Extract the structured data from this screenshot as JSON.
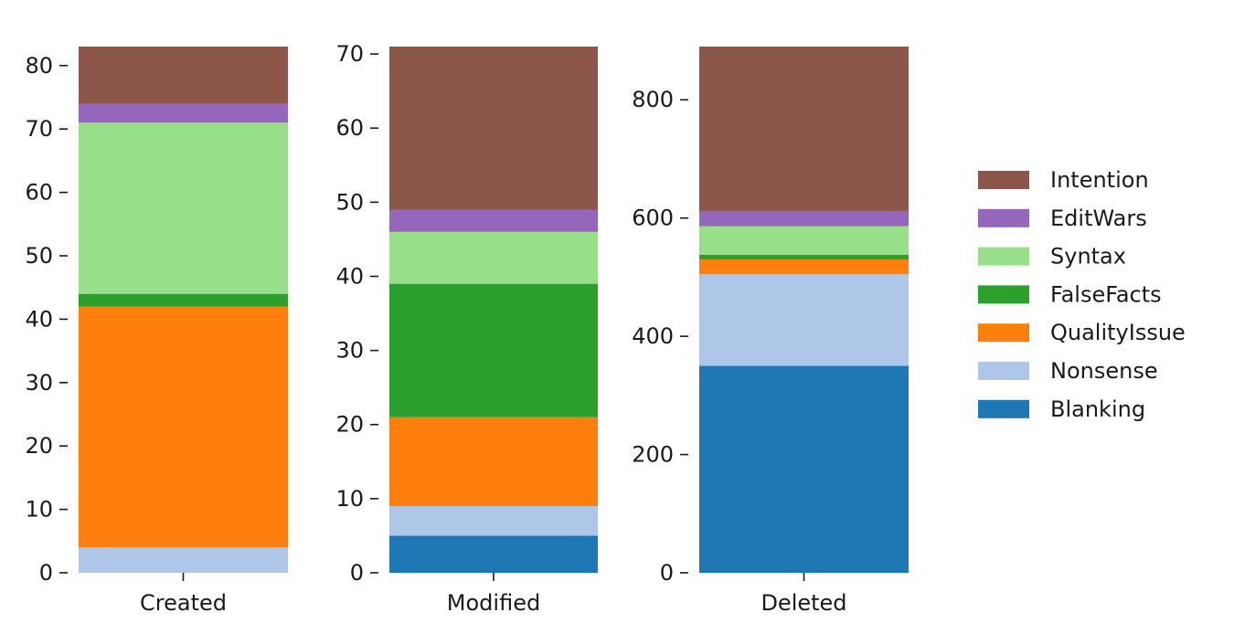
{
  "chart_data": {
    "type": "bar",
    "stacked": true,
    "categories": [
      "Created",
      "Modified",
      "Deleted"
    ],
    "layout": "three-panels-side-by-side",
    "legend": {
      "placement": "right",
      "order": [
        "Intention",
        "EditWars",
        "Syntax",
        "FalseFacts",
        "QualityIssue",
        "Nonsense",
        "Blanking"
      ]
    },
    "colors": {
      "Blanking": "#1f77b4",
      "Nonsense": "#aec7e8",
      "QualityIssue": "#ff7f0e",
      "FalseFacts": "#2ca02c",
      "Syntax": "#98df8a",
      "EditWars": "#9467bd",
      "Intention": "#8c564b"
    },
    "panels": [
      {
        "category": "Created",
        "ylim": [
          0,
          83
        ],
        "yticks": [
          0,
          10,
          20,
          30,
          40,
          50,
          60,
          70,
          80
        ],
        "segments": [
          {
            "name": "Blanking",
            "value": 0
          },
          {
            "name": "Nonsense",
            "value": 4
          },
          {
            "name": "QualityIssue",
            "value": 38
          },
          {
            "name": "FalseFacts",
            "value": 2
          },
          {
            "name": "Syntax",
            "value": 27
          },
          {
            "name": "EditWars",
            "value": 3
          },
          {
            "name": "Intention",
            "value": 9
          }
        ]
      },
      {
        "category": "Modified",
        "ylim": [
          0,
          71
        ],
        "yticks": [
          0,
          10,
          20,
          30,
          40,
          50,
          60,
          70
        ],
        "segments": [
          {
            "name": "Blanking",
            "value": 5
          },
          {
            "name": "Nonsense",
            "value": 4
          },
          {
            "name": "QualityIssue",
            "value": 12
          },
          {
            "name": "FalseFacts",
            "value": 18
          },
          {
            "name": "Syntax",
            "value": 7
          },
          {
            "name": "EditWars",
            "value": 3
          },
          {
            "name": "Intention",
            "value": 22
          }
        ]
      },
      {
        "category": "Deleted",
        "ylim": [
          0,
          890
        ],
        "yticks": [
          0,
          200,
          400,
          600,
          800
        ],
        "segments": [
          {
            "name": "Blanking",
            "value": 350
          },
          {
            "name": "Nonsense",
            "value": 155
          },
          {
            "name": "QualityIssue",
            "value": 25
          },
          {
            "name": "FalseFacts",
            "value": 8
          },
          {
            "name": "Syntax",
            "value": 48
          },
          {
            "name": "EditWars",
            "value": 26
          },
          {
            "name": "Intention",
            "value": 278
          }
        ]
      }
    ]
  }
}
